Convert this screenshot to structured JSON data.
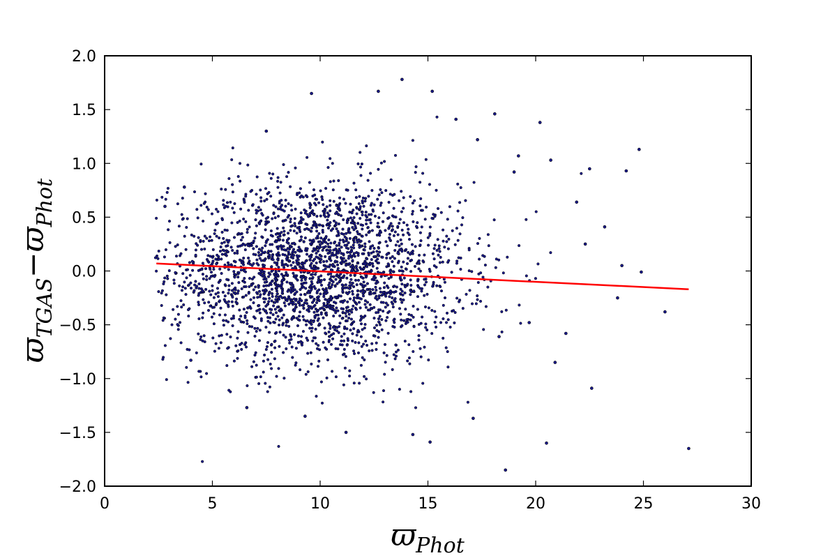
{
  "chart_data": {
    "type": "scatter",
    "title": "",
    "xlabel": {
      "symbol": "ϖ",
      "subscript": "Phot"
    },
    "ylabel": {
      "symbol_a": "ϖ",
      "subscript_a": "TGAS",
      "operator": "−",
      "symbol_b": "ϖ",
      "subscript_b": "Phot"
    },
    "xlim": [
      0,
      30
    ],
    "ylim": [
      -2.0,
      2.0
    ],
    "x_ticks": [
      0,
      5,
      10,
      15,
      20,
      25,
      30
    ],
    "x_tick_labels": [
      "0",
      "5",
      "10",
      "15",
      "20",
      "25",
      "30"
    ],
    "y_ticks": [
      -2.0,
      -1.5,
      -1.0,
      -0.5,
      0.0,
      0.5,
      1.0,
      1.5,
      2.0
    ],
    "y_tick_labels": [
      "−2.0",
      "−1.5",
      "−1.0",
      "−0.5",
      "0.0",
      "0.5",
      "1.0",
      "1.5",
      "2.0"
    ],
    "grid": false,
    "legend": "none",
    "colors": {
      "points_fill": "#1a1a8c",
      "points_edge": "#000000",
      "fit_line": "#ff0000"
    },
    "series": [
      {
        "kind": "scatter",
        "values": [
          [
            4.0,
            -0.83
          ],
          [
            7.5,
            1.3
          ],
          [
            9.6,
            1.65
          ],
          [
            12.7,
            1.67
          ],
          [
            13.8,
            1.78
          ],
          [
            15.2,
            1.67
          ],
          [
            18.1,
            1.46
          ],
          [
            20.2,
            1.38
          ],
          [
            24.8,
            1.13
          ],
          [
            24.2,
            0.93
          ],
          [
            19.2,
            1.07
          ],
          [
            21.9,
            0.64
          ],
          [
            18.6,
            -1.85
          ],
          [
            27.1,
            -1.65
          ],
          [
            20.5,
            -1.6
          ],
          [
            22.6,
            -1.09
          ],
          [
            9.3,
            -1.35
          ],
          [
            11.2,
            -1.5
          ],
          [
            14.3,
            -1.52
          ],
          [
            15.1,
            -1.59
          ],
          [
            17.1,
            -1.37
          ],
          [
            6.6,
            -1.27
          ],
          [
            3.7,
            0.78
          ],
          [
            2.8,
            0.6
          ],
          [
            23.2,
            0.41
          ],
          [
            24.0,
            0.05
          ],
          [
            24.9,
            -0.01
          ],
          [
            23.8,
            -0.25
          ],
          [
            26.0,
            -0.38
          ],
          [
            22.3,
            0.25
          ],
          [
            21.4,
            -0.58
          ],
          [
            20.9,
            -0.85
          ],
          [
            19.7,
            -0.48
          ],
          [
            18.3,
            -0.61
          ],
          [
            19.0,
            0.92
          ],
          [
            20.7,
            1.03
          ],
          [
            22.5,
            0.95
          ],
          [
            17.3,
            1.22
          ],
          [
            16.3,
            1.41
          ]
        ]
      },
      {
        "kind": "line",
        "values": [
          [
            2.4,
            0.07
          ],
          [
            27.1,
            -0.17
          ]
        ]
      }
    ]
  }
}
